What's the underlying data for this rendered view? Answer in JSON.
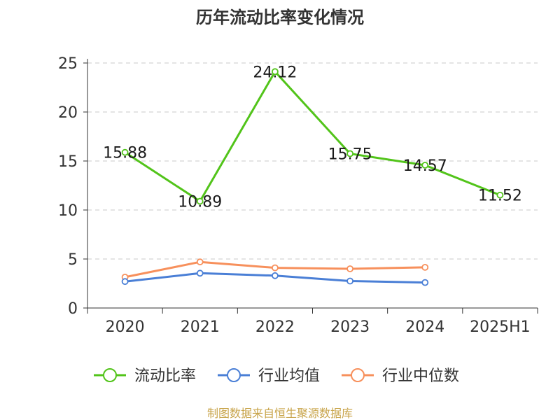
{
  "chart_data": {
    "type": "line",
    "title": "历年流动比率变化情况",
    "categories": [
      "2020",
      "2021",
      "2022",
      "2023",
      "2024",
      "2025H1"
    ],
    "ylim": [
      0,
      25
    ],
    "yticks": [
      0,
      5,
      10,
      15,
      20,
      25
    ],
    "grid": true,
    "legend_position": "bottom",
    "series": [
      {
        "name": "流动比率",
        "color": "#52c41a",
        "values": [
          15.88,
          10.89,
          24.12,
          15.75,
          14.57,
          11.52
        ],
        "labels": [
          "15.88",
          "10.89",
          "24.12",
          "15.75",
          "14.57",
          "11.52"
        ]
      },
      {
        "name": "行业均值",
        "color": "#4a7fd6",
        "values": [
          2.7,
          3.55,
          3.3,
          2.75,
          2.6,
          null
        ]
      },
      {
        "name": "行业中位数",
        "color": "#f7905c",
        "values": [
          3.15,
          4.7,
          4.1,
          4.0,
          4.15,
          null
        ]
      }
    ]
  },
  "source_text": "制图数据来自恒生聚源数据库"
}
